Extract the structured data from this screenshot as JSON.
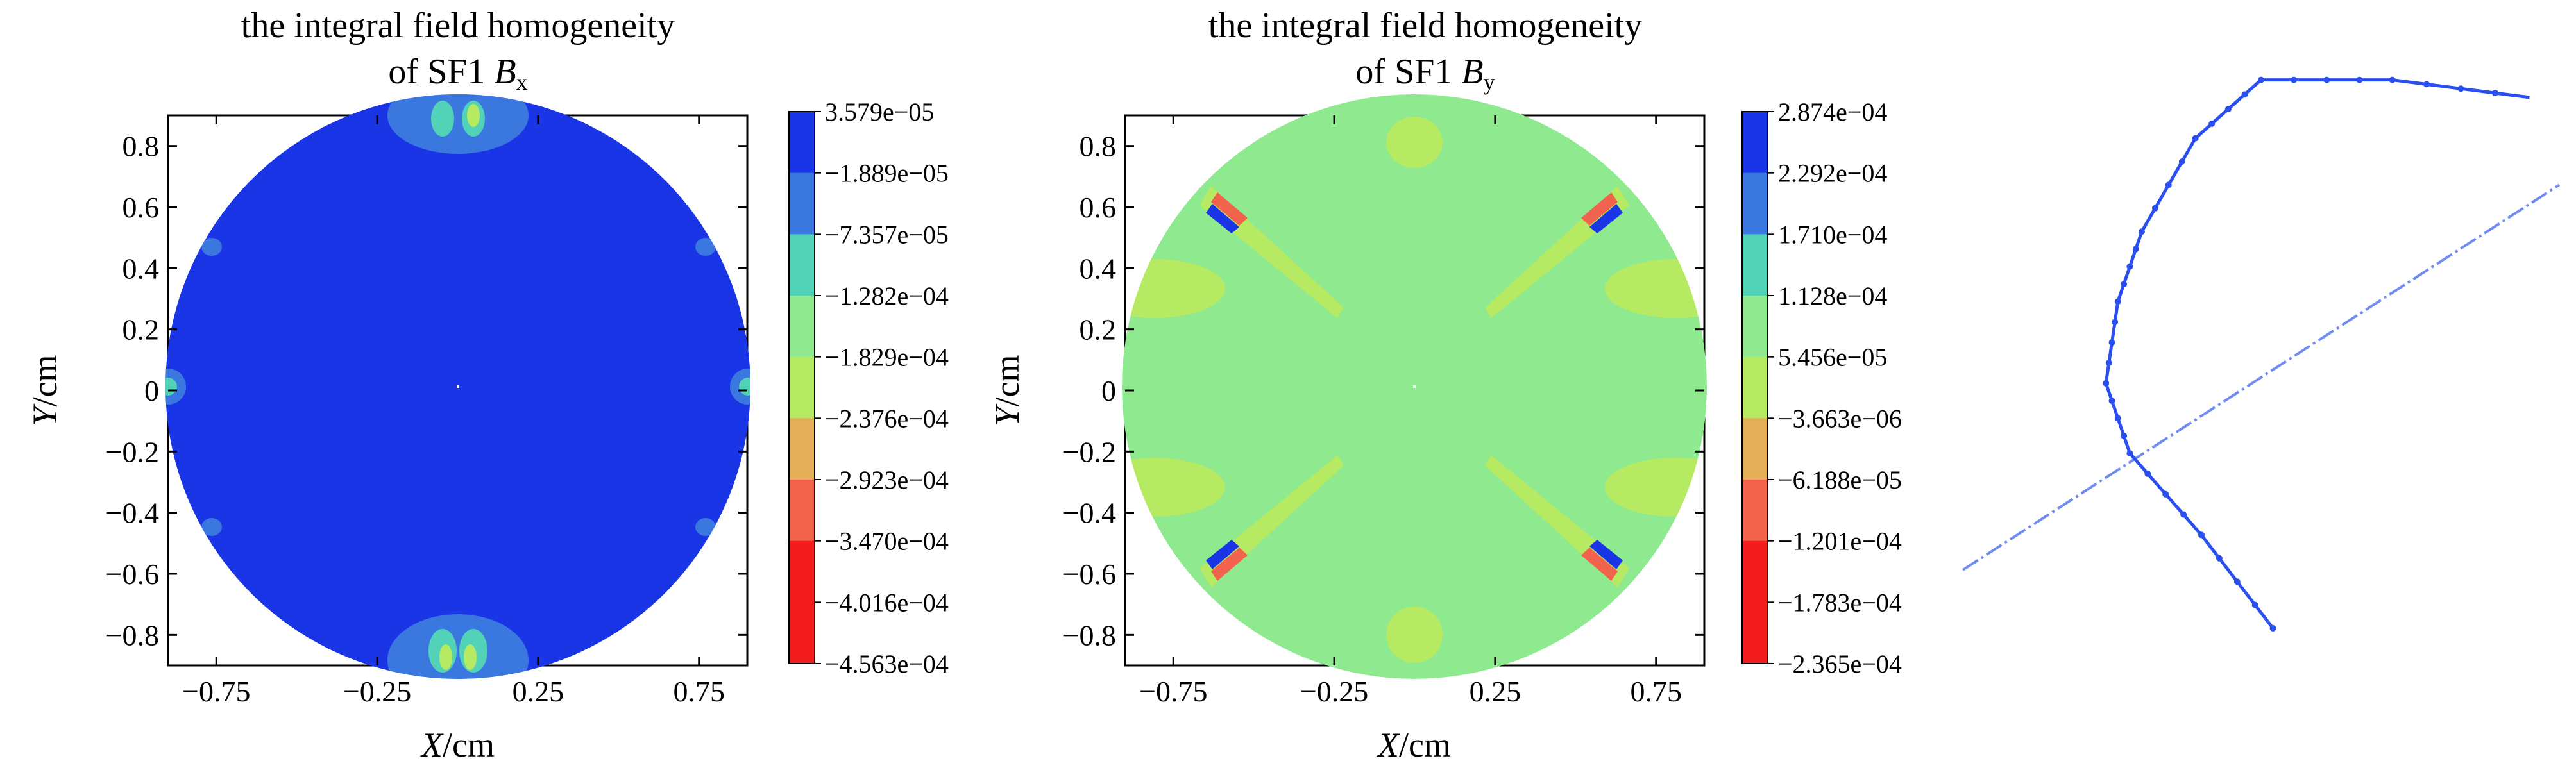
{
  "chart_data": [
    {
      "type": "heatmap",
      "title_line1": "the integral field homogeneity",
      "title_line2_prefix": "of SF1 ",
      "title_symbol": "B",
      "title_subscript": "x",
      "xlabel_var": "X",
      "xlabel_unit": "/cm",
      "ylabel_var": "Y",
      "ylabel_unit": "/cm",
      "xlim": [
        -0.9,
        0.9
      ],
      "ylim": [
        -0.9,
        0.9
      ],
      "xticks": [
        -0.75,
        -0.25,
        0.25,
        0.75
      ],
      "xtick_labels": [
        "−0.75",
        "−0.25",
        "0.25",
        "0.75"
      ],
      "yticks": [
        0.8,
        0.6,
        0.4,
        0.2,
        0,
        -0.2,
        -0.4,
        -0.6,
        -0.8
      ],
      "ytick_labels": [
        "0.8",
        "0.6",
        "0.4",
        "0.2",
        "0",
        "−0.2",
        "−0.4",
        "−0.6",
        "−0.8"
      ],
      "region": "circle",
      "radius": 0.9,
      "background_level_color": "#1a35e6",
      "colorbar_labels": [
        "3.579e−05",
        "−1.889e−05",
        "−7.357e−05",
        "−1.282e−04",
        "−1.829e−04",
        "−2.376e−04",
        "−2.923e−04",
        "−3.470e−04",
        "−4.016e−04",
        "−4.563e−04"
      ],
      "colorbar_colors": [
        "#1a35e6",
        "#3a78e0",
        "#52d3b7",
        "#8fe98f",
        "#b5ea62",
        "#e3ae58",
        "#f2634d",
        "#f41d1d"
      ]
    },
    {
      "type": "heatmap",
      "title_line1": "the integral field homogeneity",
      "title_line2_prefix": "of SF1 ",
      "title_symbol": "B",
      "title_subscript": "y",
      "xlabel_var": "X",
      "xlabel_unit": "/cm",
      "ylabel_var": "Y",
      "ylabel_unit": "/cm",
      "xlim": [
        -0.9,
        0.9
      ],
      "ylim": [
        -0.9,
        0.9
      ],
      "xticks": [
        -0.75,
        -0.25,
        0.25,
        0.75
      ],
      "xtick_labels": [
        "−0.75",
        "−0.25",
        "0.25",
        "0.75"
      ],
      "yticks": [
        0.8,
        0.6,
        0.4,
        0.2,
        0,
        -0.2,
        -0.4,
        -0.6,
        -0.8
      ],
      "ytick_labels": [
        "0.8",
        "0.6",
        "0.4",
        "0.2",
        "0",
        "−0.2",
        "−0.4",
        "−0.6",
        "−0.8"
      ],
      "region": "circle",
      "radius": 0.9,
      "background_level_color": "#8fe98f",
      "colorbar_labels": [
        "2.874e−04",
        "2.292e−04",
        "1.710e−04",
        "1.128e−04",
        "5.456e−05",
        "−3.663e−06",
        "−6.188e−05",
        "−1.201e−04",
        "−1.783e−04",
        "−2.365e−04"
      ],
      "colorbar_colors": [
        "#1a35e6",
        "#3a78e0",
        "#52d3b7",
        "#8fe98f",
        "#b5ea62",
        "#e3ae58",
        "#f2634d",
        "#f41d1d"
      ]
    },
    {
      "type": "line",
      "series": [
        {
          "values": [
            [
              0.52,
              0.0
            ],
            [
              0.4,
              0.16
            ],
            [
              0.28,
              0.3
            ],
            [
              0.24,
              0.42
            ],
            [
              0.26,
              0.56
            ],
            [
              0.3,
              0.68
            ],
            [
              0.39,
              0.84
            ],
            [
              0.5,
              0.94
            ],
            [
              0.72,
              0.94
            ],
            [
              0.95,
              0.91
            ]
          ],
          "color": "#2a4ff0"
        },
        {
          "values": [
            [
              0.0,
              0.1
            ],
            [
              1.0,
              0.76
            ]
          ],
          "color": "#6f8cf2",
          "dashed": true
        }
      ]
    }
  ]
}
